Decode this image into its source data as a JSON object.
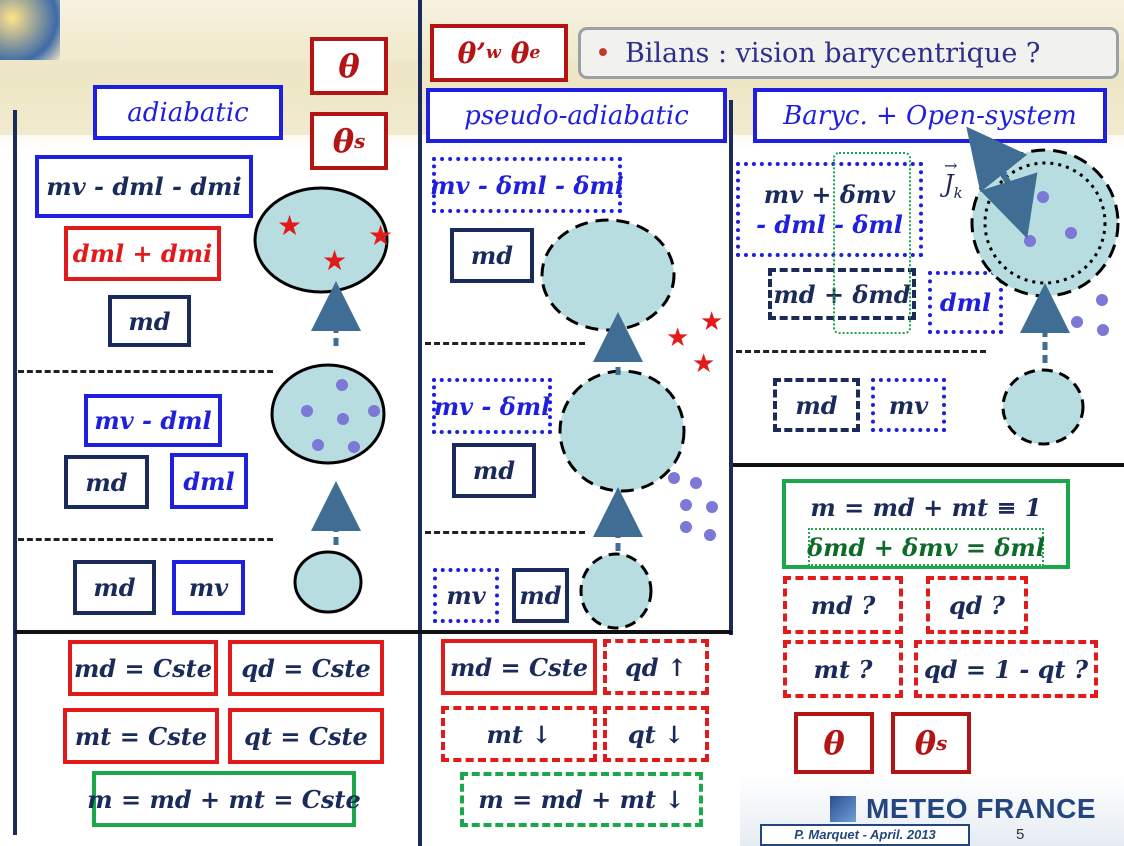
{
  "header": {
    "theta_top": "θ",
    "theta_s_label": "θ",
    "theta_s_sub": "s",
    "theta_w_label": "θ’",
    "theta_w_sub": "w",
    "theta_e_label": "θ",
    "theta_e_sub": "e",
    "title_bullet": "•",
    "title": "Bilans : vision barycentrique ?"
  },
  "columns": {
    "col1_title": "adiabatic",
    "col2_title": "pseudo-adiabatic",
    "col3_title": "Baryc. + Open-system"
  },
  "col1": {
    "row1_mv_dml_dmi": "mv - dml - dmi",
    "row1_dml_dmi": "dml + dmi",
    "row1_md": "md",
    "row2_mv_dml": "mv - dml",
    "row2_md": "md",
    "row2_dml": "dml",
    "row3_md": "md",
    "row3_mv": "mv",
    "eq_md": "md = Cste",
    "eq_qd": "qd = Cste",
    "eq_mt": "mt = Cste",
    "eq_qt": "qt = Cste",
    "eq_m": "m = md + mt = Cste"
  },
  "col2": {
    "row1_mv": "mv - δml - δmi",
    "row1_md": "md",
    "row2_mv": "mv - δml",
    "row2_md": "md",
    "row3_mv": "mv",
    "row3_md": "md",
    "eq_md": "md = Cste",
    "eq_qd": "qd ↑",
    "eq_mt": "mt ↓",
    "eq_qt": "qt ↓",
    "eq_m": "m = md + mt ↓"
  },
  "col3": {
    "flux_label": "J",
    "flux_sub": "k",
    "row1_a": "mv + δmv",
    "row1_b": "- dml - δml",
    "row1_md": "md + δmd",
    "row1_dml": "dml",
    "row2_md": "md",
    "row2_mv": "mv",
    "eq_m": "m = md + mt ≡ 1",
    "eq_delta": "δmd + δmv = δml",
    "q_md": "md ?",
    "q_qd": "qd ?",
    "q_mt": "mt ?",
    "q_qd2": "qd = 1 - qt ?",
    "theta": "θ",
    "theta_s": "θ",
    "theta_s_sub": "s"
  },
  "footer": {
    "brand": "METEO FRANCE",
    "author": "P. Marquet - April. 2013",
    "page": "5"
  },
  "colors": {
    "blue": "#1f1fe0",
    "navy": "#1a2a5a",
    "red": "#e11b1b",
    "dark_red": "#b51414",
    "green": "#1aa84a",
    "parcel_fill": "#b7dde0",
    "drop": "#7b78d6",
    "arrow": "#3f6d93"
  }
}
